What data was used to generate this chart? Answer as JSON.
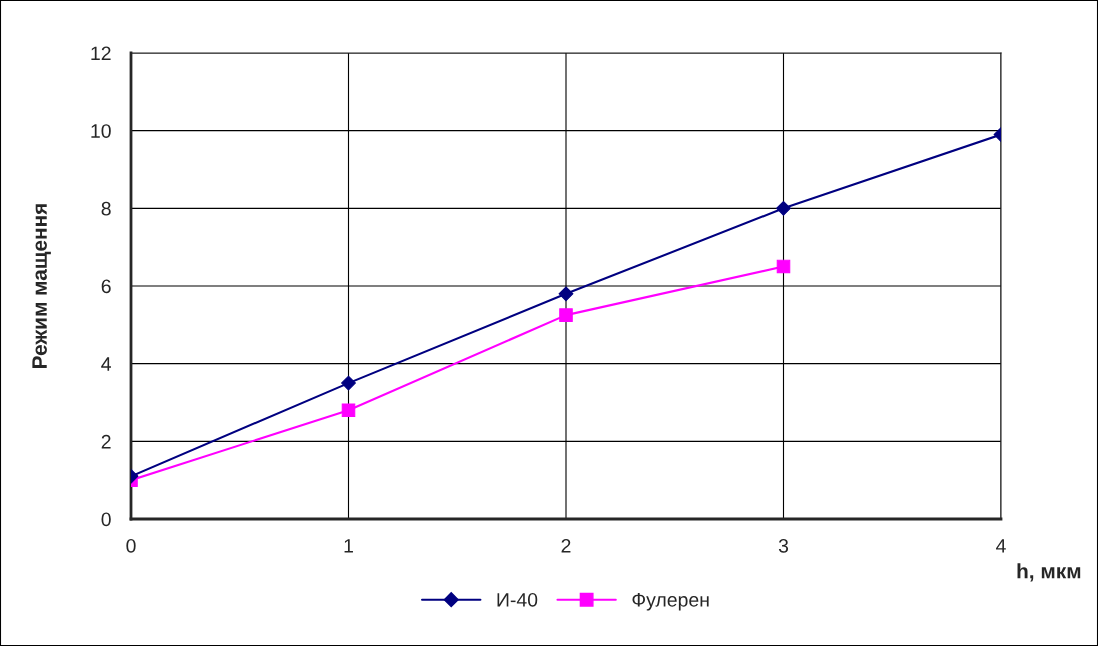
{
  "chart_data": {
    "type": "line",
    "xlabel": "h, мкм",
    "ylabel": "Режим мащення",
    "x": [
      0,
      1,
      2,
      3,
      4
    ],
    "series": [
      {
        "name": "И-40",
        "color": "#000080",
        "marker": "diamond",
        "values": [
          1.1,
          3.5,
          5.8,
          8.0,
          9.9
        ]
      },
      {
        "name": "Фулерен",
        "color": "#ff00ff",
        "marker": "square",
        "values": [
          1.0,
          2.8,
          5.25,
          6.5,
          null
        ]
      }
    ],
    "xlim": [
      0,
      4
    ],
    "xticks": [
      0,
      1,
      2,
      3,
      4
    ],
    "ylim": [
      0,
      12
    ],
    "yticks": [
      0,
      2,
      4,
      6,
      8,
      10,
      12
    ],
    "grid": true,
    "legend": "bottom"
  }
}
